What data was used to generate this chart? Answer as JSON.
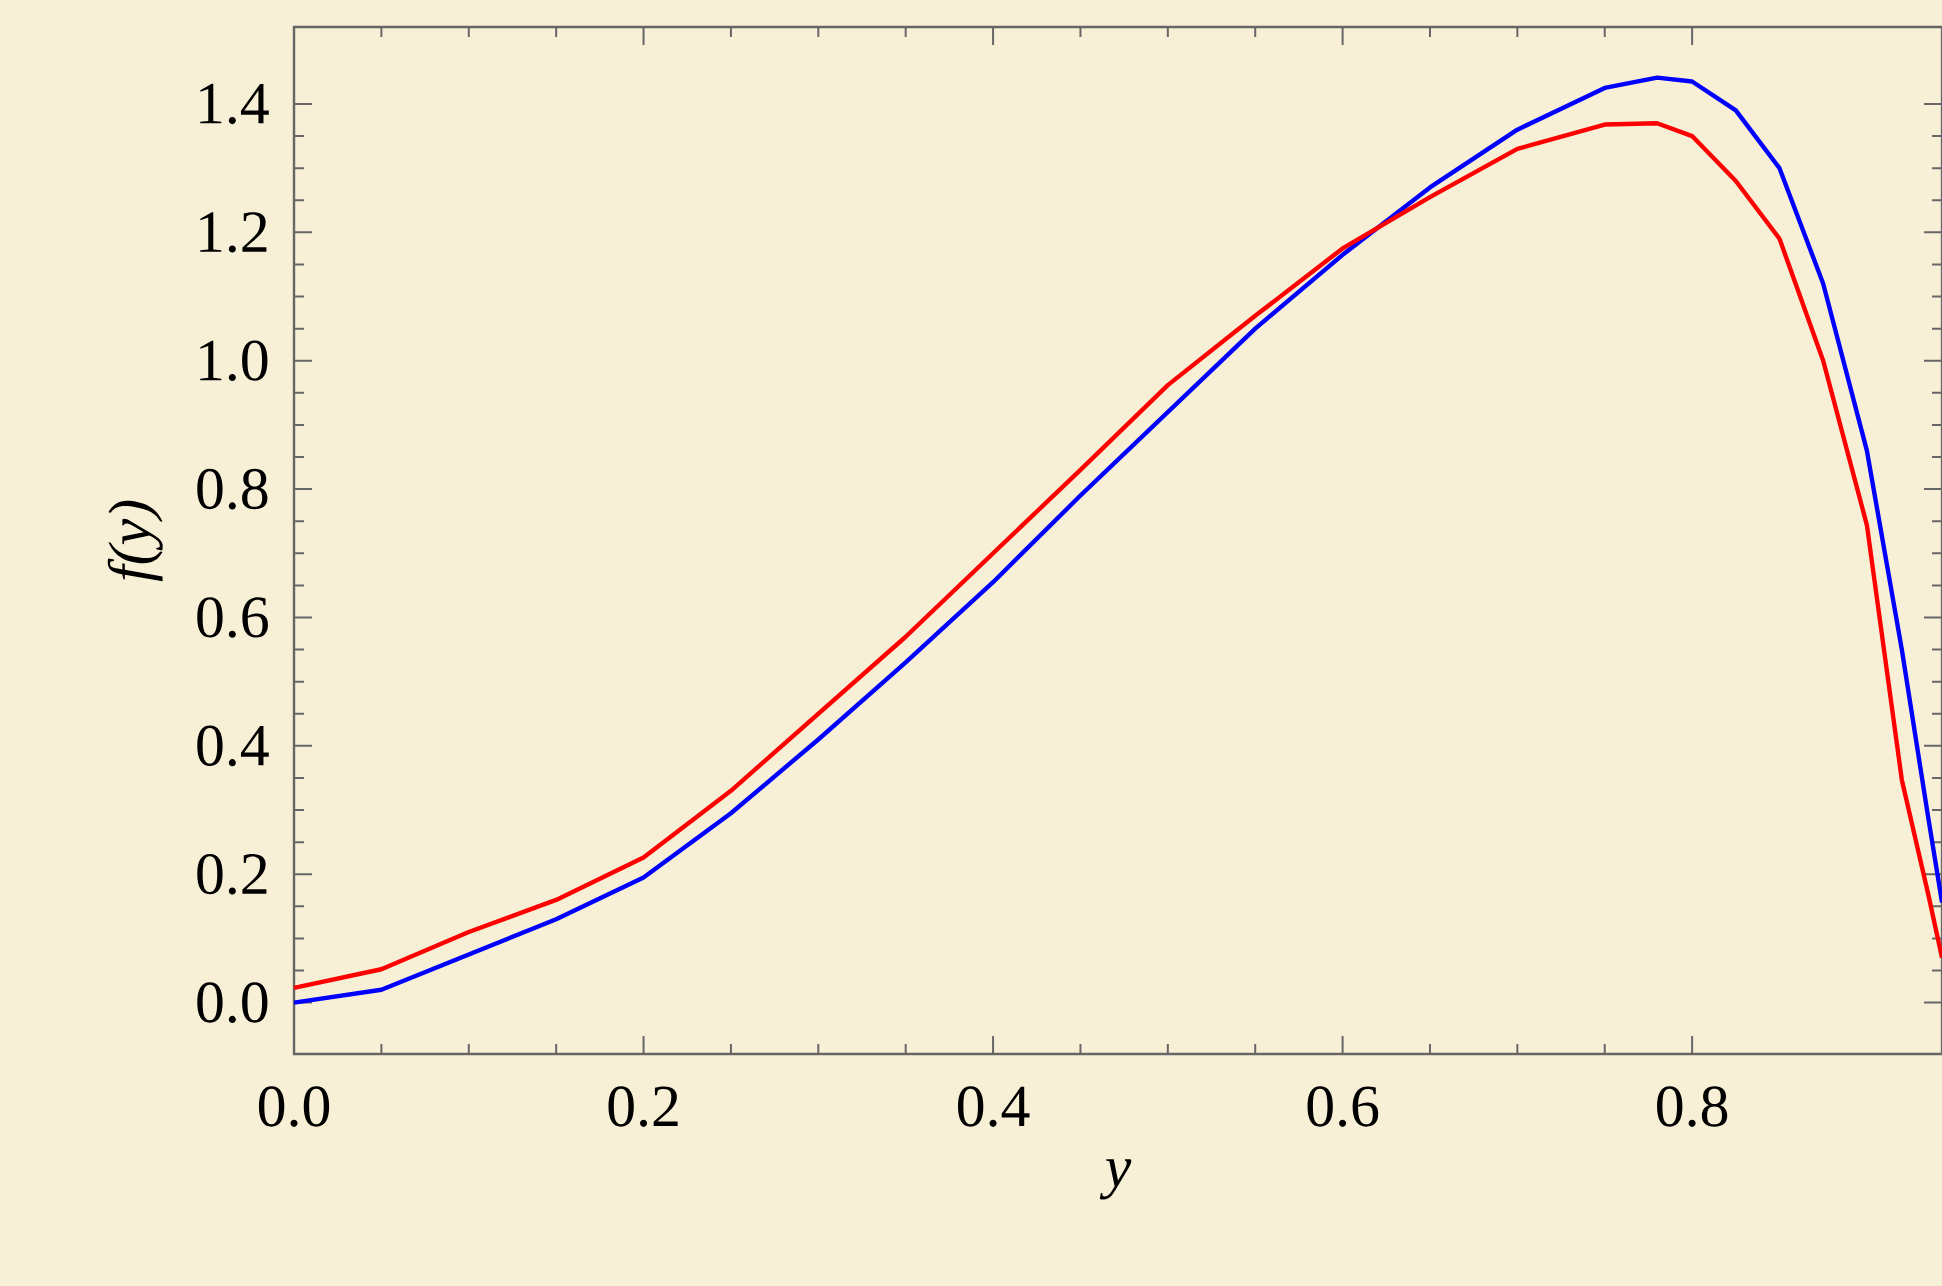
{
  "chart_data": {
    "type": "line",
    "xlabel": "y",
    "ylabel": "f(y)",
    "x": [
      0,
      0.05,
      0.1,
      0.15,
      0.2,
      0.25,
      0.3,
      0.35,
      0.4,
      0.45,
      0.5,
      0.55,
      0.6,
      0.65,
      0.7,
      0.75,
      0.78,
      0.8,
      0.825,
      0.85,
      0.875,
      0.9,
      0.92,
      0.935,
      0.943
    ],
    "series": [
      {
        "color": "#0000ff",
        "values": [
          0.0,
          0.02,
          0.075,
          0.13,
          0.195,
          0.295,
          0.41,
          0.53,
          0.655,
          0.79,
          0.92,
          1.05,
          1.165,
          1.27,
          1.36,
          1.425,
          1.441,
          1.435,
          1.39,
          1.3,
          1.12,
          0.86,
          0.55,
          0.29,
          0.156
        ]
      },
      {
        "color": "#ff0000",
        "values": [
          0.023,
          0.052,
          0.11,
          0.16,
          0.226,
          0.33,
          0.45,
          0.57,
          0.7,
          0.83,
          0.962,
          1.07,
          1.175,
          1.255,
          1.33,
          1.368,
          1.37,
          1.35,
          1.28,
          1.19,
          1.0,
          0.744,
          0.347,
          0.17,
          0.07
        ]
      }
    ],
    "xlim": [
      0,
      0.943
    ],
    "ylim": [
      -0.08,
      1.52
    ],
    "xticks": [
      {
        "value": 0,
        "label": "0.0"
      },
      0.2,
      0.4,
      0.6,
      0.8
    ],
    "yticks": [
      {
        "value": 0,
        "label": "0.0"
      },
      0.2,
      0.4,
      0.6,
      0.8,
      {
        "value": 1,
        "label": "1.0"
      },
      1.2,
      1.4
    ],
    "grid": false,
    "marker": "none",
    "line_style": "solid"
  }
}
